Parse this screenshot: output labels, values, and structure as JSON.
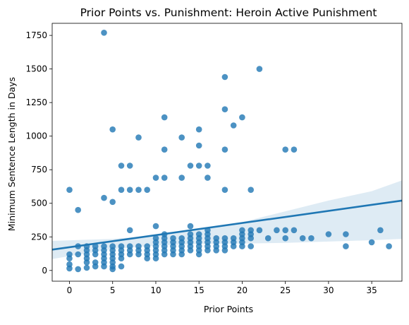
{
  "chart_data": {
    "type": "scatter",
    "title": "Prior Points vs. Punishment: Heroin Active Punishment",
    "xlabel": "Prior Points",
    "ylabel": "Minimum Sentence Length in Days",
    "xlim": [
      -2,
      38.5
    ],
    "ylim": [
      -80,
      1840
    ],
    "xticks": [
      0,
      5,
      10,
      15,
      20,
      25,
      30,
      35
    ],
    "yticks": [
      0,
      250,
      500,
      750,
      1000,
      1250,
      1500,
      1750
    ],
    "grid": false,
    "legend": "none",
    "colors": {
      "points": "#1f77b4",
      "line": "#1f77b4",
      "band": "#1f77b4",
      "axes": "#000000"
    },
    "points": [
      [
        0,
        600
      ],
      [
        0,
        120
      ],
      [
        0,
        90
      ],
      [
        0,
        45
      ],
      [
        0,
        15
      ],
      [
        1,
        450
      ],
      [
        1,
        180
      ],
      [
        1,
        120
      ],
      [
        1,
        10
      ],
      [
        2,
        180
      ],
      [
        2,
        150
      ],
      [
        2,
        120
      ],
      [
        2,
        90
      ],
      [
        2,
        60
      ],
      [
        2,
        20
      ],
      [
        3,
        180
      ],
      [
        3,
        150
      ],
      [
        3,
        120
      ],
      [
        3,
        60
      ],
      [
        3,
        30
      ],
      [
        4,
        1770
      ],
      [
        4,
        540
      ],
      [
        4,
        180
      ],
      [
        4,
        150
      ],
      [
        4,
        120
      ],
      [
        4,
        90
      ],
      [
        4,
        60
      ],
      [
        4,
        30
      ],
      [
        5,
        1050
      ],
      [
        5,
        510
      ],
      [
        5,
        180
      ],
      [
        5,
        150
      ],
      [
        5,
        120
      ],
      [
        5,
        90
      ],
      [
        5,
        60
      ],
      [
        5,
        30
      ],
      [
        5,
        10
      ],
      [
        6,
        780
      ],
      [
        6,
        600
      ],
      [
        6,
        180
      ],
      [
        6,
        150
      ],
      [
        6,
        120
      ],
      [
        6,
        90
      ],
      [
        6,
        30
      ],
      [
        7,
        780
      ],
      [
        7,
        600
      ],
      [
        7,
        300
      ],
      [
        7,
        180
      ],
      [
        7,
        150
      ],
      [
        7,
        120
      ],
      [
        8,
        990
      ],
      [
        8,
        600
      ],
      [
        8,
        180
      ],
      [
        8,
        150
      ],
      [
        8,
        120
      ],
      [
        9,
        600
      ],
      [
        9,
        180
      ],
      [
        9,
        150
      ],
      [
        9,
        120
      ],
      [
        9,
        90
      ],
      [
        10,
        690
      ],
      [
        10,
        330
      ],
      [
        10,
        240
      ],
      [
        10,
        210
      ],
      [
        10,
        180
      ],
      [
        10,
        150
      ],
      [
        10,
        120
      ],
      [
        10,
        90
      ],
      [
        11,
        1140
      ],
      [
        11,
        900
      ],
      [
        11,
        690
      ],
      [
        11,
        270
      ],
      [
        11,
        240
      ],
      [
        11,
        210
      ],
      [
        11,
        180
      ],
      [
        11,
        150
      ],
      [
        11,
        120
      ],
      [
        12,
        240
      ],
      [
        12,
        210
      ],
      [
        12,
        180
      ],
      [
        12,
        150
      ],
      [
        12,
        120
      ],
      [
        13,
        990
      ],
      [
        13,
        690
      ],
      [
        13,
        240
      ],
      [
        13,
        210
      ],
      [
        13,
        180
      ],
      [
        13,
        150
      ],
      [
        13,
        120
      ],
      [
        14,
        780
      ],
      [
        14,
        330
      ],
      [
        14,
        270
      ],
      [
        14,
        240
      ],
      [
        14,
        210
      ],
      [
        14,
        180
      ],
      [
        14,
        150
      ],
      [
        15,
        1050
      ],
      [
        15,
        930
      ],
      [
        15,
        780
      ],
      [
        15,
        270
      ],
      [
        15,
        240
      ],
      [
        15,
        210
      ],
      [
        15,
        180
      ],
      [
        15,
        150
      ],
      [
        15,
        120
      ],
      [
        16,
        780
      ],
      [
        16,
        690
      ],
      [
        16,
        300
      ],
      [
        16,
        270
      ],
      [
        16,
        240
      ],
      [
        16,
        210
      ],
      [
        16,
        180
      ],
      [
        16,
        150
      ],
      [
        17,
        240
      ],
      [
        17,
        210
      ],
      [
        17,
        180
      ],
      [
        17,
        150
      ],
      [
        18,
        1440
      ],
      [
        18,
        1200
      ],
      [
        18,
        900
      ],
      [
        18,
        600
      ],
      [
        18,
        240
      ],
      [
        18,
        210
      ],
      [
        18,
        180
      ],
      [
        18,
        150
      ],
      [
        19,
        1080
      ],
      [
        19,
        240
      ],
      [
        19,
        210
      ],
      [
        19,
        180
      ],
      [
        20,
        1140
      ],
      [
        20,
        300
      ],
      [
        20,
        270
      ],
      [
        20,
        240
      ],
      [
        20,
        210
      ],
      [
        20,
        180
      ],
      [
        21,
        600
      ],
      [
        21,
        300
      ],
      [
        21,
        270
      ],
      [
        21,
        240
      ],
      [
        21,
        180
      ],
      [
        22,
        1500
      ],
      [
        22,
        300
      ],
      [
        23,
        240
      ],
      [
        24,
        300
      ],
      [
        25,
        900
      ],
      [
        25,
        300
      ],
      [
        25,
        240
      ],
      [
        26,
        900
      ],
      [
        26,
        300
      ],
      [
        27,
        240
      ],
      [
        28,
        240
      ],
      [
        30,
        270
      ],
      [
        32,
        270
      ],
      [
        32,
        180
      ],
      [
        35,
        210
      ],
      [
        36,
        300
      ],
      [
        37,
        180
      ]
    ],
    "regression": {
      "x": [
        -2,
        38.5
      ],
      "y": [
        155,
        520
      ]
    },
    "confidence_band": {
      "x": [
        -2,
        5,
        10,
        15,
        20,
        25,
        30,
        35,
        38.5
      ],
      "lower": [
        85,
        160,
        185,
        198,
        200,
        205,
        215,
        225,
        235
      ],
      "upper": [
        220,
        235,
        262,
        300,
        360,
        440,
        520,
        590,
        670
      ]
    }
  }
}
